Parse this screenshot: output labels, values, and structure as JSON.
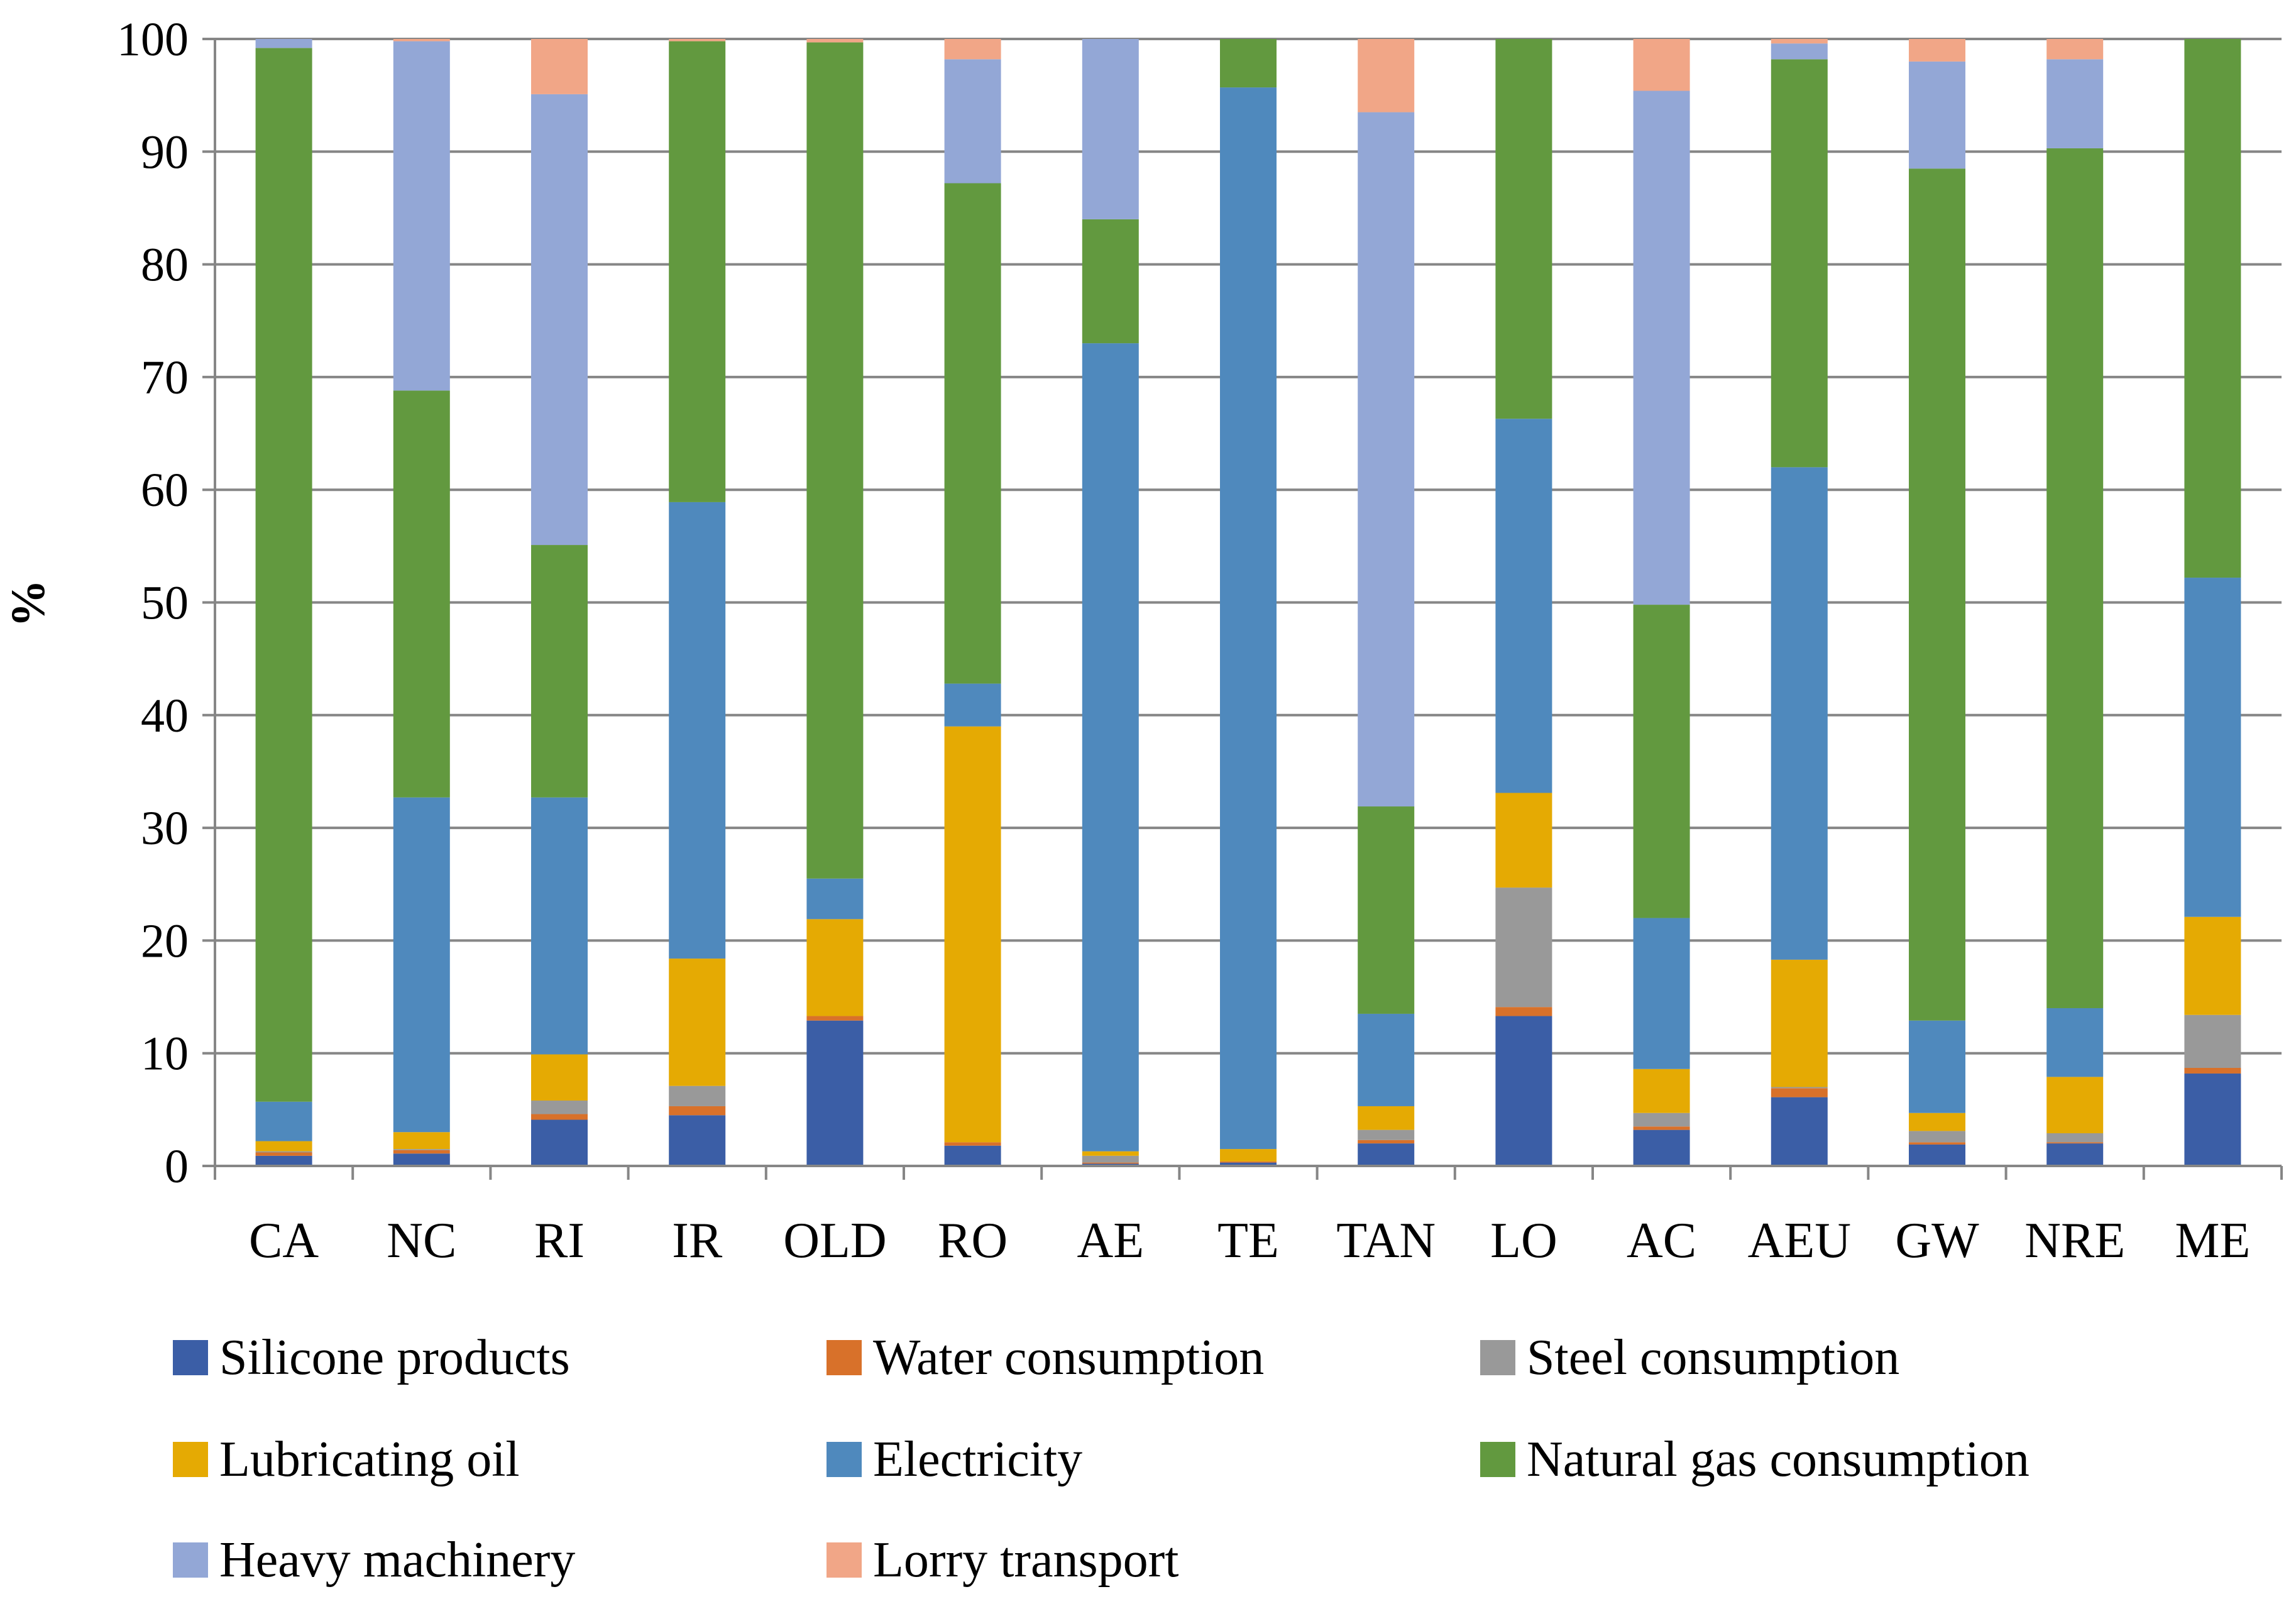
{
  "chart_data": {
    "type": "bar",
    "stacked": true,
    "title": "",
    "xlabel": "",
    "ylabel": "%",
    "ylim": [
      0,
      100
    ],
    "yticks": [
      0,
      10,
      20,
      30,
      40,
      50,
      60,
      70,
      80,
      90,
      100
    ],
    "grid": true,
    "legend_position": "bottom",
    "categories": [
      "CA",
      "NC",
      "RI",
      "IR",
      "OLD",
      "RO",
      "AE",
      "TE",
      "TAN",
      "LO",
      "AC",
      "AEU",
      "GW",
      "NRE",
      "ME"
    ],
    "series": [
      {
        "name": "Silicone products",
        "color": "#3b5ea6",
        "values": [
          0.9,
          1.1,
          4.1,
          4.5,
          12.9,
          1.8,
          0.2,
          0.3,
          2.0,
          13.3,
          3.2,
          6.1,
          1.9,
          2.0,
          8.2
        ]
      },
      {
        "name": "Water consumption",
        "color": "#d8712a",
        "values": [
          0.3,
          0.3,
          0.5,
          0.8,
          0.4,
          0.3,
          0.1,
          0.1,
          0.3,
          0.8,
          0.3,
          0.8,
          0.2,
          0.1,
          0.5
        ]
      },
      {
        "name": "Steel consumption",
        "color": "#999999",
        "values": [
          0.1,
          0.1,
          1.2,
          1.8,
          0.0,
          0.0,
          0.6,
          0.0,
          0.9,
          10.6,
          1.2,
          0.1,
          1.0,
          0.8,
          4.7
        ]
      },
      {
        "name": "Lubricating oil",
        "color": "#e5aa03",
        "values": [
          0.9,
          1.5,
          4.1,
          11.3,
          8.6,
          36.9,
          0.4,
          1.1,
          2.1,
          8.4,
          3.9,
          11.3,
          1.6,
          5.0,
          8.7
        ]
      },
      {
        "name": "Electricity",
        "color": "#4f89bd",
        "values": [
          3.5,
          29.7,
          22.8,
          40.5,
          3.6,
          3.8,
          71.7,
          94.2,
          8.2,
          33.2,
          13.4,
          43.7,
          8.2,
          6.1,
          30.1
        ]
      },
      {
        "name": "Natural gas consumption",
        "color": "#62993f",
        "values": [
          93.5,
          36.1,
          22.4,
          40.9,
          74.2,
          44.4,
          11.0,
          4.3,
          18.4,
          33.7,
          27.8,
          36.2,
          75.6,
          76.3,
          47.8
        ]
      },
      {
        "name": "Heavy machinery",
        "color": "#93a7d6",
        "values": [
          0.8,
          31.0,
          40.0,
          0.0,
          0.0,
          11.0,
          16.0,
          0.0,
          61.6,
          0.0,
          45.6,
          1.4,
          9.5,
          7.9,
          0.0
        ]
      },
      {
        "name": "Lorry transport",
        "color": "#f1a687",
        "values": [
          0.0,
          0.2,
          4.9,
          0.2,
          0.3,
          1.8,
          0.0,
          0.0,
          6.5,
          0.0,
          4.6,
          0.4,
          2.0,
          1.8,
          0.0
        ]
      }
    ]
  }
}
